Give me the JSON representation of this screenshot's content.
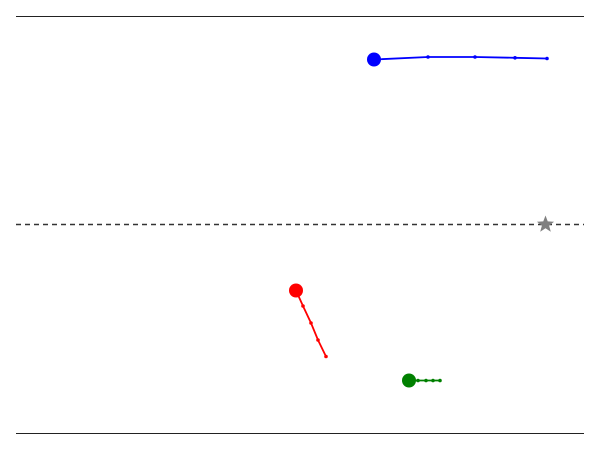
{
  "scene": {
    "background": "#ffffff",
    "frame_color": "#222222",
    "center_line": {
      "style": "dashed",
      "color": "#333333"
    },
    "marker": {
      "shape": "star",
      "color": "#808080"
    },
    "trails": [
      {
        "name": "blue",
        "color": "#0000ff"
      },
      {
        "name": "red",
        "color": "#ff0000"
      },
      {
        "name": "green",
        "color": "#008000"
      }
    ]
  }
}
